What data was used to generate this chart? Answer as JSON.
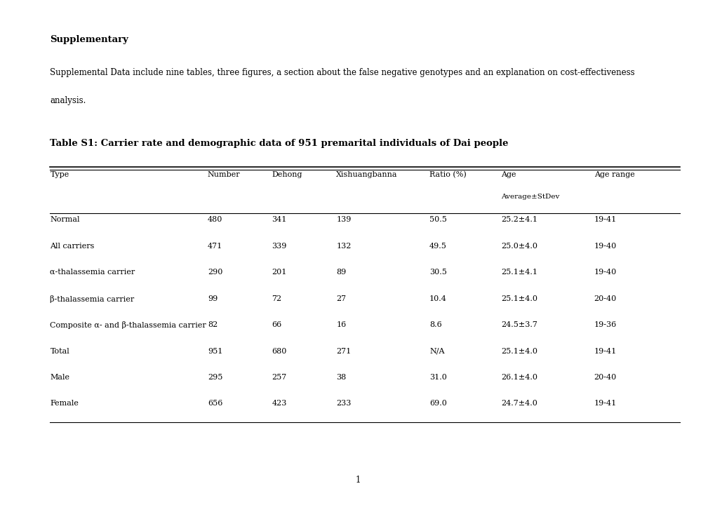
{
  "supplementary_title": "Supplementary",
  "supplementary_text_line1": "Supplemental Data include nine tables, three figures, a section about the false negative genotypes and an explanation on cost-effectiveness",
  "supplementary_text_line2": "analysis.",
  "table_title": "Table S1: Carrier rate and demographic data of 951 premarital individuals of Dai people",
  "columns": [
    "Type",
    "Number",
    "Dehong",
    "Xishuangbanna",
    "Ratio (%)",
    "Age",
    "Age range"
  ],
  "subheader": [
    "",
    "",
    "",
    "",
    "",
    "Average±StDev",
    ""
  ],
  "rows": [
    [
      "Normal",
      "480",
      "341",
      "139",
      "50.5",
      "25.2±4.1",
      "19-41"
    ],
    [
      "All carriers",
      "471",
      "339",
      "132",
      "49.5",
      "25.0±4.0",
      "19-40"
    ],
    [
      "α-thalassemia carrier",
      "290",
      "201",
      "89",
      "30.5",
      "25.1±4.1",
      "19-40"
    ],
    [
      "β-thalassemia carrier",
      "99",
      "72",
      "27",
      "10.4",
      "25.1±4.0",
      "20-40"
    ],
    [
      "Composite α- and β-thalassemia carrier",
      "82",
      "66",
      "16",
      "8.6",
      "24.5±3.7",
      "19-36"
    ],
    [
      "Total",
      "951",
      "680",
      "271",
      "N/A",
      "25.1±4.0",
      "19-41"
    ],
    [
      "Male",
      "295",
      "257",
      "38",
      "31.0",
      "26.1±4.0",
      "20-40"
    ],
    [
      "Female",
      "656",
      "423",
      "233",
      "69.0",
      "24.7±4.0",
      "19-41"
    ]
  ],
  "page_number": "1",
  "background_color": "#ffffff",
  "text_color": "#000000",
  "font_size_title": 9.5,
  "font_size_body": 8.5,
  "font_size_table": 8.0
}
